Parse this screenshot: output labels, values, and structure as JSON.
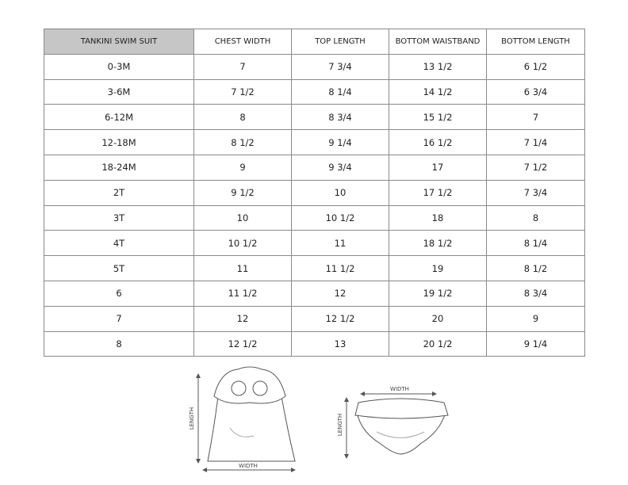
{
  "table": {
    "header": [
      "TANKINI SWIM SUIT",
      "CHEST WIDTH",
      "TOP LENGTH",
      "BOTTOM WAISTBAND",
      "BOTTOM LENGTH"
    ],
    "rows": [
      [
        "0-3M",
        "7",
        "7 3/4",
        "13 1/2",
        "6 1/2"
      ],
      [
        "3-6M",
        "7 1/2",
        "8 1/4",
        "14 1/2",
        "6 3/4"
      ],
      [
        "6-12M",
        "8",
        "8 3/4",
        "15 1/2",
        "7"
      ],
      [
        "12-18M",
        "8 1/2",
        "9 1/4",
        "16 1/2",
        "7 1/4"
      ],
      [
        "18-24M",
        "9",
        "9 3/4",
        "17",
        "7 1/2"
      ],
      [
        "2T",
        "9 1/2",
        "10",
        "17 1/2",
        "7 3/4"
      ],
      [
        "3T",
        "10",
        "10 1/2",
        "18",
        "8"
      ],
      [
        "4T",
        "10 1/2",
        "11",
        "18 1/2",
        "8 1/4"
      ],
      [
        "5T",
        "11",
        "11 1/2",
        "19",
        "8 1/2"
      ],
      [
        "6",
        "11 1/2",
        "12",
        "19 1/2",
        "8 3/4"
      ],
      [
        "7",
        "12",
        "12 1/2",
        "20",
        "9"
      ],
      [
        "8",
        "12 1/2",
        "13",
        "20 1/2",
        "9 1/4"
      ]
    ]
  },
  "illustrations": {
    "top": {
      "length_label": "LENGTH",
      "width_label": "WIDTH"
    },
    "bottom": {
      "width_label": "WIDTH",
      "length_label": "LENGTH"
    }
  }
}
